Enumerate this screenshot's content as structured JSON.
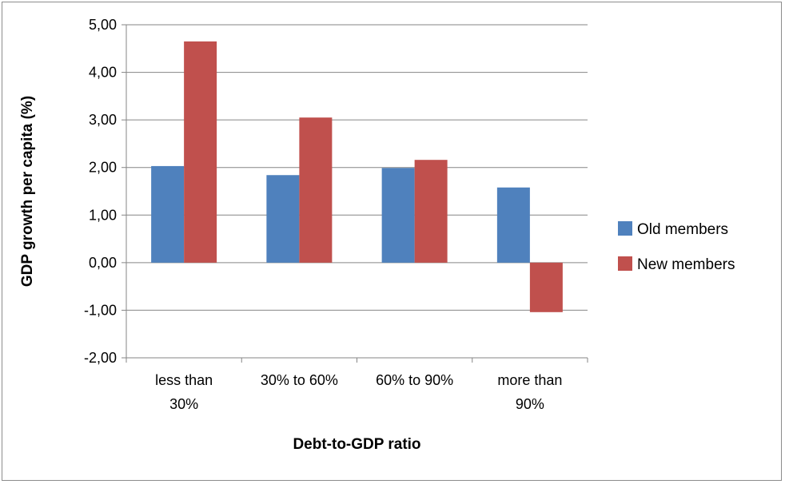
{
  "chart_data": {
    "type": "bar",
    "categories": [
      [
        "less than",
        "30%"
      ],
      [
        "30% to 60%"
      ],
      [
        "60% to 90%"
      ],
      [
        "more than",
        "90%"
      ]
    ],
    "series": [
      {
        "name": "Old members",
        "values": [
          2.03,
          1.84,
          1.99,
          1.58
        ],
        "color": "#4f81bd"
      },
      {
        "name": "New members",
        "values": [
          4.65,
          3.05,
          2.16,
          -1.04
        ],
        "color": "#c0504d"
      }
    ],
    "ylim": [
      -2,
      5
    ],
    "yticks": [
      -2,
      -1,
      0,
      1,
      2,
      3,
      4,
      5
    ],
    "ytick_labels": [
      "-2,00",
      "-1,00",
      "0,00",
      "1,00",
      "2,00",
      "3,00",
      "4,00",
      "5,00"
    ],
    "xlabel": "Debt-to-GDP ratio",
    "ylabel": "GDP growth per capita (%)",
    "grid": true,
    "legend": "right"
  }
}
